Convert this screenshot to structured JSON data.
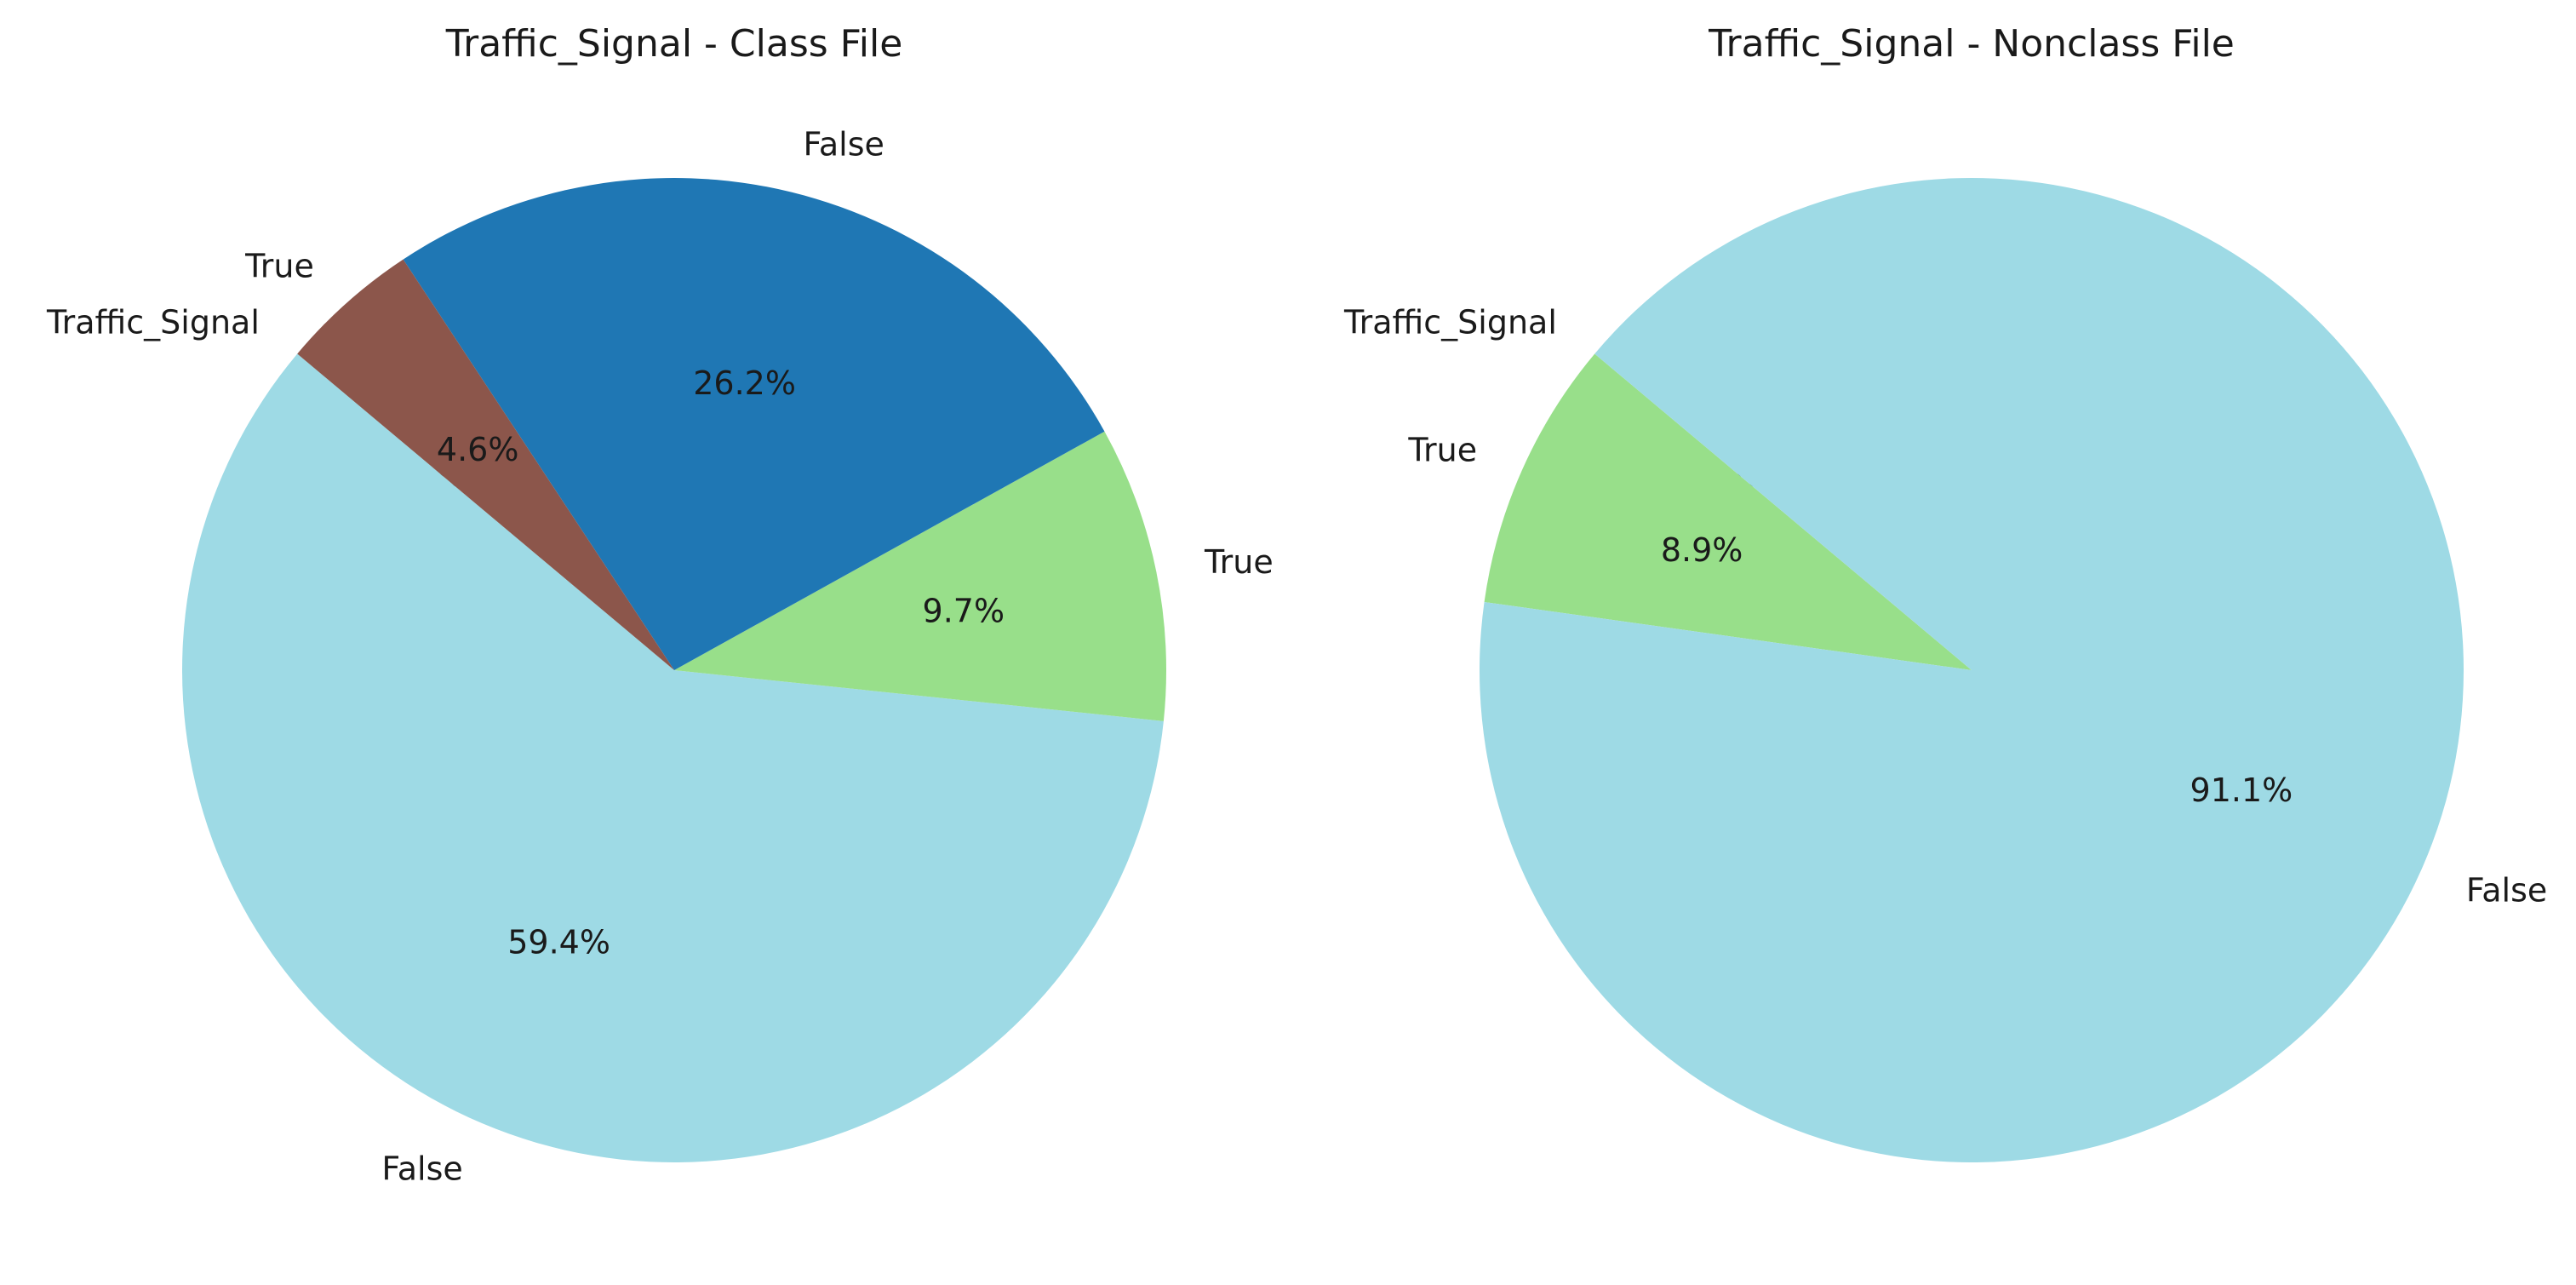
{
  "chart_data": [
    {
      "type": "pie",
      "title": "Traffic_Signal - Class File",
      "start_angle_deg": 140,
      "direction": "counterclockwise",
      "slices": [
        {
          "label": "Traffic_Signal",
          "value": 0.0,
          "pct_label": "0.0%",
          "color": "#9edae5"
        },
        {
          "label": "False",
          "value": 59.4,
          "pct_label": "59.4%",
          "color": "#9edae5"
        },
        {
          "label": "True",
          "value": 9.7,
          "pct_label": "9.7%",
          "color": "#98df8a"
        },
        {
          "label": "False",
          "value": 26.2,
          "pct_label": "26.2%",
          "color": "#1f77b4"
        },
        {
          "label": "True",
          "value": 4.6,
          "pct_label": "4.6%",
          "color": "#8c564b"
        }
      ]
    },
    {
      "type": "pie",
      "title": "Traffic_Signal - Nonclass File",
      "start_angle_deg": 140,
      "direction": "counterclockwise",
      "slices": [
        {
          "label": "Traffic_Signal",
          "value": 0.0,
          "pct_label": "0.0%",
          "color": "#9edae5"
        },
        {
          "label": "True",
          "value": 8.9,
          "pct_label": "8.9%",
          "color": "#98df8a"
        },
        {
          "label": "False",
          "value": 91.1,
          "pct_label": "91.1%",
          "color": "#9edae5"
        }
      ]
    }
  ]
}
